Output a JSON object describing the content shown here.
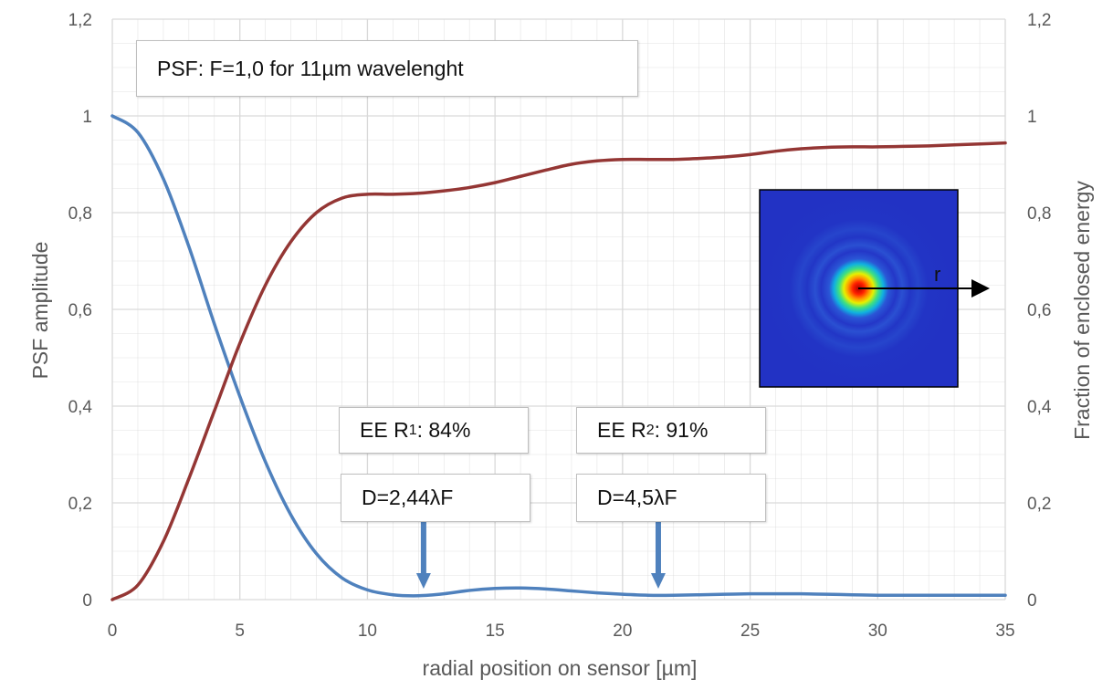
{
  "chart_data": {
    "type": "line",
    "title_box": "PSF: F=1,0 for 11µm wavelenght",
    "xlabel": "radial position on sensor [µm]",
    "ylabel_left": "PSF amplitude",
    "ylabel_right": "Fraction of enclosed energy",
    "xlim": [
      0,
      35
    ],
    "ylim": [
      0,
      1.2
    ],
    "x_ticks": [
      "0",
      "5",
      "10",
      "15",
      "20",
      "25",
      "30",
      "35"
    ],
    "y_ticks": [
      "0",
      "0,2",
      "0,4",
      "0,6",
      "0,8",
      "1",
      "1,2"
    ],
    "y_ticks_right": [
      "0",
      "0,2",
      "0,4",
      "0,6",
      "0,8",
      "1",
      "1,2"
    ],
    "grid": true,
    "colors": {
      "psf": "#4f81bd",
      "ee": "#943634",
      "grid": "#d9d9d9",
      "arrow": "#4f81bd"
    },
    "series": [
      {
        "key": "psf",
        "axis": "left",
        "x": [
          0,
          1,
          2,
          3,
          4,
          5,
          6,
          7,
          8,
          9,
          10,
          11,
          12,
          13,
          14,
          15,
          16,
          17,
          18,
          19,
          20,
          21,
          22,
          23,
          24,
          25,
          26,
          27,
          28,
          29,
          30,
          31,
          32,
          33,
          34,
          35
        ],
        "values": [
          1.0,
          0.966,
          0.87,
          0.73,
          0.57,
          0.42,
          0.285,
          0.175,
          0.095,
          0.045,
          0.02,
          0.01,
          0.008,
          0.012,
          0.019,
          0.023,
          0.024,
          0.022,
          0.018,
          0.014,
          0.011,
          0.009,
          0.009,
          0.01,
          0.011,
          0.012,
          0.012,
          0.012,
          0.011,
          0.01,
          0.009,
          0.009,
          0.009,
          0.009,
          0.009,
          0.009
        ]
      },
      {
        "key": "ee",
        "axis": "right",
        "x": [
          0,
          1,
          2,
          3,
          4,
          5,
          6,
          7,
          8,
          9,
          10,
          11,
          12,
          13,
          14,
          15,
          16,
          17,
          18,
          19,
          20,
          21,
          22,
          23,
          24,
          25,
          26,
          27,
          28,
          29,
          30,
          31,
          32,
          33,
          34,
          35
        ],
        "values": [
          0.0,
          0.03,
          0.12,
          0.25,
          0.39,
          0.53,
          0.65,
          0.74,
          0.8,
          0.83,
          0.838,
          0.838,
          0.84,
          0.845,
          0.852,
          0.862,
          0.875,
          0.888,
          0.9,
          0.907,
          0.91,
          0.91,
          0.91,
          0.912,
          0.915,
          0.92,
          0.927,
          0.932,
          0.935,
          0.936,
          0.936,
          0.937,
          0.938,
          0.94,
          0.942,
          0.944
        ]
      }
    ],
    "annotations": {
      "ee1": {
        "prefix": "EE R",
        "sub": "1",
        "suffix": ": 84%"
      },
      "ee2": {
        "prefix": "EE R",
        "sub": "2",
        "suffix": ": 91%"
      },
      "d1": "D=2,44λF",
      "d2": "D=4,5λF",
      "arrow1_x": 12.2,
      "arrow2_x": 21.4,
      "inset_label": "r"
    }
  }
}
